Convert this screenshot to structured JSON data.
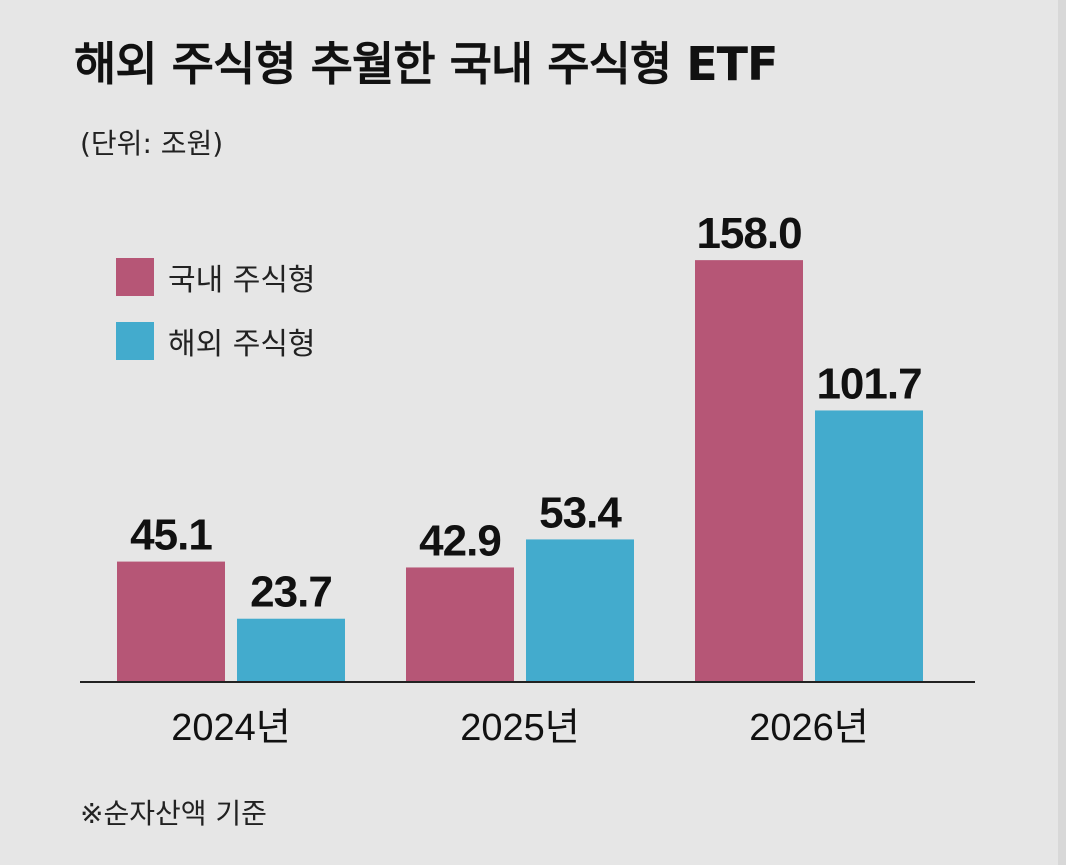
{
  "title": "해외 주식형 추월한 국내 주식형 ETF",
  "unit": "(단위: 조원)",
  "footnote": "※순자산액 기준",
  "colors": {
    "domestic": "#b65676",
    "overseas": "#43abcd",
    "background": "#e6e6e6",
    "axis": "#222222"
  },
  "chart_data": {
    "type": "bar",
    "title": "해외 주식형 추월한 국내 주식형 ETF",
    "xlabel": "",
    "ylabel": "조원",
    "categories": [
      "2024년",
      "2025년",
      "2026년"
    ],
    "series": [
      {
        "name": "국내 주식형",
        "values": [
          45.1,
          42.9,
          158.0
        ],
        "labels": [
          "45.1",
          "42.9",
          "158.0"
        ]
      },
      {
        "name": "해외 주식형",
        "values": [
          23.7,
          53.4,
          101.7
        ],
        "labels": [
          "23.7",
          "53.4",
          "101.7"
        ]
      }
    ],
    "ylim": [
      0,
      170
    ],
    "grid": false,
    "legend": "top-left"
  }
}
